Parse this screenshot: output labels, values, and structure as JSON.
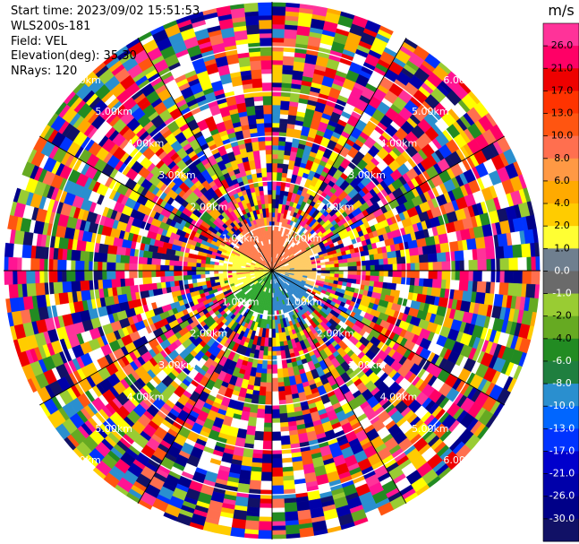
{
  "header": {
    "start_time": "Start time: 2023/09/02 15:51:53",
    "instrument": "WLS200s-181",
    "field": "Field: VEL",
    "elevation": "Elevation(deg): 35.30",
    "nrays": "NRays: 120"
  },
  "chart_data": {
    "type": "heatmap",
    "projection": "polar-ppi",
    "field": "VEL",
    "units": "m/s",
    "nrays": 120,
    "elevation_deg": 35.3,
    "ring_labels": [
      "1.00km",
      "2.00km",
      "3.00km",
      "4.00km",
      "5.00km",
      "6.00km"
    ],
    "colorbar": {
      "title": "m/s",
      "ticks": [
        "26.0",
        "21.0",
        "17.0",
        "13.0",
        "10.0",
        "8.0",
        "6.0",
        "4.0",
        "2.0",
        "1.0",
        "0.0",
        "-1.0",
        "-2.0",
        "-4.0",
        "-6.0",
        "-8.0",
        "-10.0",
        "-13.0",
        "-17.0",
        "-21.0",
        "-26.0",
        "-30.0"
      ],
      "colors": [
        "#ff3399",
        "#ff0066",
        "#ee0000",
        "#ff3300",
        "#ff5511",
        "#ff6f4f",
        "#ff9944",
        "#ffaa00",
        "#ffcc00",
        "#ffff33",
        "#6f7f8f",
        "#6a6a6a",
        "#99cc33",
        "#66aa22",
        "#228b22",
        "#1f7f3f",
        "#2a8fcf",
        "#0066ff",
        "#0033ff",
        "#0000cc",
        "#0000aa",
        "#000088",
        "#111166"
      ]
    },
    "near_field": {
      "north": "#ff7f50",
      "west": "#ffff44",
      "southwest": "#33aa33",
      "southeast": "#3388cc",
      "east": "#ffcc66"
    },
    "noise_palette": [
      "#ff1493",
      "#ff3399",
      "#0000aa",
      "#000088",
      "#ffff00",
      "#ff0066",
      "#ff6f4f",
      "#ffaa00",
      "#228b22",
      "#66aa22",
      "#2a8fcf",
      "#0033ff",
      "#ff5511",
      "#99cc33",
      "#111166",
      "#ee0000",
      "#ffcc00"
    ]
  }
}
